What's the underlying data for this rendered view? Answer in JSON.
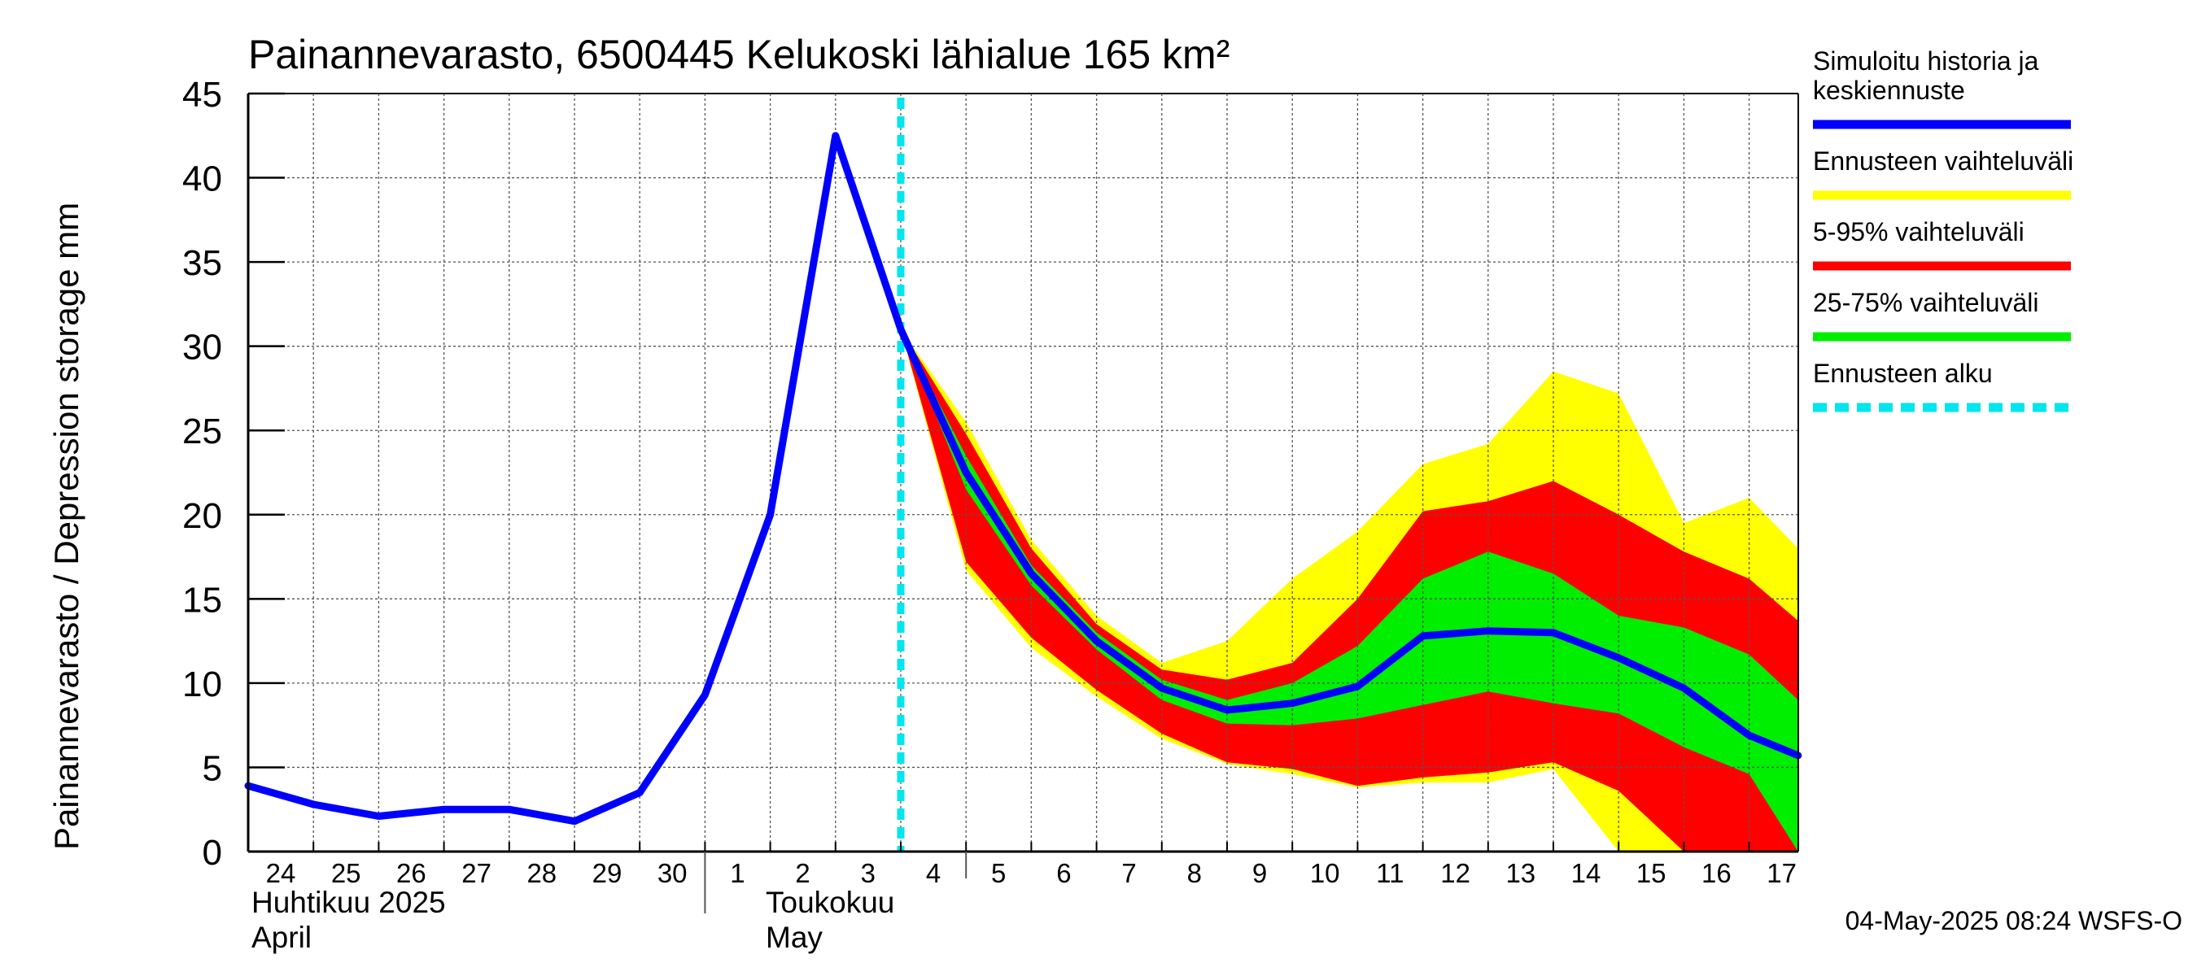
{
  "chart_data": {
    "type": "area",
    "title": "Painannevarasto, 6500445 Kelukoski lähialue 165 km²",
    "ylabel": "Painannevarasto / Depression storage    mm",
    "ylim": [
      0,
      45
    ],
    "yticks": [
      "0",
      "5",
      "10",
      "15",
      "20",
      "25",
      "30",
      "35",
      "40",
      "45"
    ],
    "xlim": [
      0,
      23.75
    ],
    "x_tick_labels": [
      "24",
      "25",
      "26",
      "27",
      "28",
      "29",
      "30",
      "1",
      "2",
      "3",
      "4",
      "5",
      "6",
      "7",
      "8",
      "9",
      "10",
      "11",
      "12",
      "13",
      "14",
      "15",
      "16",
      "17"
    ],
    "months": [
      {
        "line1": "Huhtikuu  2025",
        "line2": "April"
      },
      {
        "line1": "Toukokuu",
        "line2": "May"
      }
    ],
    "forecast_start_x": 10,
    "series": [
      {
        "name": "Ennusteen vaihteluväli",
        "color": "#ffff00",
        "x": [
          10,
          11,
          12,
          13,
          14,
          15,
          16,
          17,
          18,
          19,
          20,
          21,
          22,
          23,
          23.75
        ],
        "upper": [
          31,
          25.5,
          18.5,
          14,
          11.2,
          12.5,
          16.2,
          19,
          23,
          24.2,
          28.5,
          27.2,
          19.5,
          21,
          18
        ],
        "lower": [
          31,
          16.7,
          12.1,
          9.2,
          6.7,
          5.2,
          4.6,
          3.8,
          4.1,
          4.1,
          4.9,
          0,
          0,
          0,
          0
        ]
      },
      {
        "name": "5-95% vaihteluväli",
        "color": "#ff0000",
        "x": [
          10,
          11,
          12,
          13,
          14,
          15,
          16,
          17,
          18,
          19,
          20,
          21,
          22,
          23,
          23.75
        ],
        "upper": [
          31,
          24.8,
          18,
          13.5,
          10.8,
          10.2,
          11.2,
          15,
          20.2,
          20.8,
          22,
          20,
          17.8,
          16.2,
          13.7
        ],
        "lower": [
          31,
          17.2,
          12.7,
          9.6,
          7,
          5.3,
          4.9,
          3.9,
          4.4,
          4.7,
          5.3,
          3.6,
          0,
          0,
          0
        ]
      },
      {
        "name": "25-75% vaihteluväli",
        "color": "#00ee00",
        "x": [
          10,
          11,
          12,
          13,
          14,
          15,
          16,
          17,
          18,
          19,
          20,
          21,
          22,
          23,
          23.75
        ],
        "upper": [
          31,
          23.5,
          17,
          13,
          10.2,
          9,
          10,
          12.2,
          16.2,
          17.8,
          16.5,
          14,
          13.3,
          11.7,
          9
        ],
        "lower": [
          31,
          21.5,
          15.8,
          12,
          9,
          7.6,
          7.5,
          7.9,
          8.7,
          9.5,
          8.8,
          8.2,
          6.2,
          4.6,
          0
        ]
      },
      {
        "name": "Simuloitu historia ja keskiennuste",
        "color": "#0000ff",
        "x": [
          0,
          1,
          2,
          3,
          4,
          5,
          6,
          7,
          8,
          9,
          10,
          11,
          12,
          13,
          14,
          15,
          16,
          17,
          18,
          19,
          20,
          21,
          22,
          23,
          23.75
        ],
        "values": [
          3.9,
          2.8,
          2.1,
          2.5,
          2.5,
          1.8,
          3.5,
          9.3,
          20,
          42.5,
          31,
          22.5,
          16.5,
          12.5,
          9.7,
          8.4,
          8.8,
          9.8,
          12.8,
          13.1,
          13,
          11.5,
          9.7,
          6.9,
          5.7
        ]
      }
    ],
    "legend": [
      {
        "label_lines": [
          "Simuloitu historia ja",
          "keskiennuste"
        ],
        "color": "#0000ff",
        "style": "solid"
      },
      {
        "label_lines": [
          "Ennusteen vaihteluväli"
        ],
        "color": "#ffff00",
        "style": "solid"
      },
      {
        "label_lines": [
          "5-95% vaihteluväli"
        ],
        "color": "#ff0000",
        "style": "solid"
      },
      {
        "label_lines": [
          "25-75% vaihteluväli"
        ],
        "color": "#00ee00",
        "style": "solid"
      },
      {
        "label_lines": [
          "Ennusteen alku"
        ],
        "color": "#00e5ee",
        "style": "dashed"
      }
    ],
    "legend_position": "right",
    "grid": true,
    "footer": "04-May-2025 08:24 WSFS-O"
  }
}
